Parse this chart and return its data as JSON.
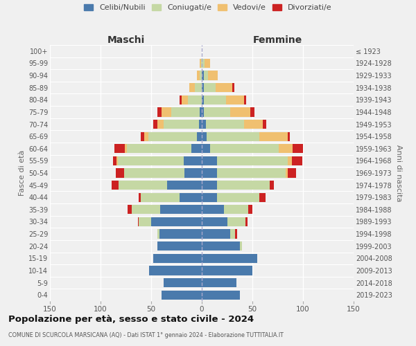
{
  "age_groups": [
    "0-4",
    "5-9",
    "10-14",
    "15-19",
    "20-24",
    "25-29",
    "30-34",
    "35-39",
    "40-44",
    "45-49",
    "50-54",
    "55-59",
    "60-64",
    "65-69",
    "70-74",
    "75-79",
    "80-84",
    "85-89",
    "90-94",
    "95-99",
    "100+"
  ],
  "birth_years": [
    "2019-2023",
    "2014-2018",
    "2009-2013",
    "2004-2008",
    "1999-2003",
    "1994-1998",
    "1989-1993",
    "1984-1988",
    "1979-1983",
    "1974-1978",
    "1969-1973",
    "1964-1968",
    "1959-1963",
    "1954-1958",
    "1949-1953",
    "1944-1948",
    "1939-1943",
    "1934-1938",
    "1929-1933",
    "1924-1928",
    "≤ 1923"
  ],
  "maschi": {
    "celibi": [
      40,
      38,
      52,
      48,
      44,
      42,
      50,
      41,
      22,
      34,
      17,
      18,
      10,
      5,
      3,
      2,
      0,
      0,
      0,
      0,
      0
    ],
    "coniugati": [
      0,
      0,
      0,
      0,
      0,
      2,
      12,
      28,
      38,
      48,
      60,
      65,
      64,
      48,
      35,
      28,
      14,
      7,
      2,
      1,
      0
    ],
    "vedovi": [
      0,
      0,
      0,
      0,
      0,
      0,
      0,
      0,
      0,
      0,
      0,
      1,
      2,
      4,
      6,
      10,
      6,
      5,
      3,
      1,
      0
    ],
    "divorziati": [
      0,
      0,
      0,
      0,
      0,
      0,
      1,
      4,
      2,
      7,
      8,
      4,
      10,
      3,
      4,
      4,
      2,
      0,
      0,
      0,
      0
    ]
  },
  "femmine": {
    "nubili": [
      38,
      34,
      50,
      55,
      38,
      28,
      25,
      22,
      15,
      15,
      15,
      15,
      8,
      5,
      4,
      2,
      2,
      2,
      2,
      0,
      0
    ],
    "coniugate": [
      0,
      0,
      0,
      0,
      2,
      5,
      18,
      24,
      42,
      52,
      68,
      70,
      68,
      52,
      38,
      26,
      22,
      12,
      4,
      3,
      0
    ],
    "vedove": [
      0,
      0,
      0,
      0,
      0,
      0,
      0,
      0,
      0,
      0,
      2,
      4,
      14,
      28,
      18,
      20,
      18,
      16,
      10,
      5,
      0
    ],
    "divorziate": [
      0,
      0,
      0,
      0,
      0,
      2,
      2,
      4,
      6,
      4,
      8,
      10,
      10,
      2,
      4,
      4,
      2,
      2,
      0,
      0,
      0
    ]
  },
  "colors": {
    "celibi": "#4a7aac",
    "coniugati": "#c5d8a4",
    "vedovi": "#f0c070",
    "divorziati": "#cc2222"
  },
  "title": "Popolazione per età, sesso e stato civile - 2024",
  "subtitle": "COMUNE DI SCURCOLA MARSICANA (AQ) - Dati ISTAT 1° gennaio 2024 - Elaborazione TUTTITALIA.IT",
  "xlabel_left": "Maschi",
  "xlabel_right": "Femmine",
  "ylabel_left": "Fasce di età",
  "ylabel_right": "Anni di nascita",
  "xlim": 150,
  "background_color": "#f0f0f0",
  "legend_labels": [
    "Celibi/Nubili",
    "Coniugati/e",
    "Vedovi/e",
    "Divorziati/e"
  ]
}
